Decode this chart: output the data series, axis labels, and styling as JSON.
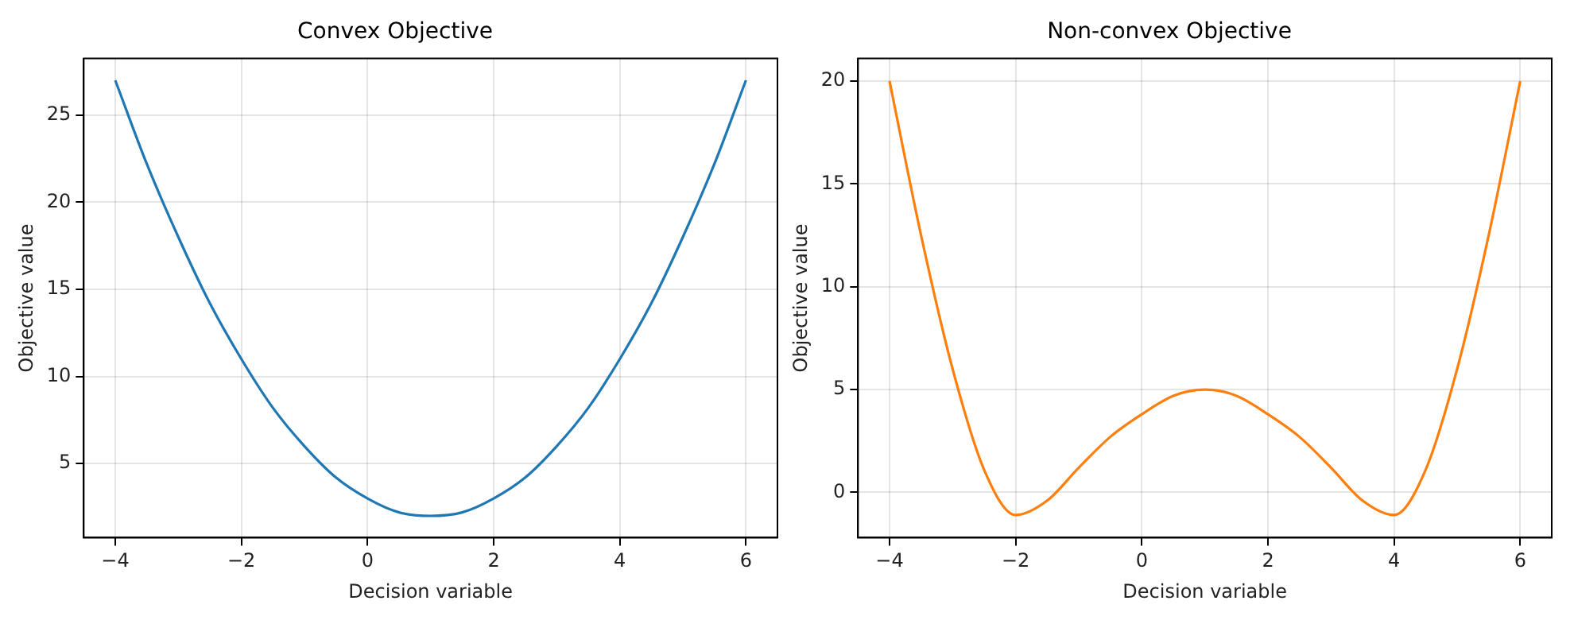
{
  "chart_data": [
    {
      "type": "line",
      "title": "Convex Objective",
      "xlabel": "Decision variable",
      "ylabel": "Objective value",
      "xlim": [
        -4.5,
        6.5
      ],
      "xticks": [
        -4,
        -2,
        0,
        2,
        4,
        6
      ],
      "ylim": [
        0.75,
        28.25
      ],
      "yticks": [
        5,
        10,
        15,
        20,
        25
      ],
      "grid": true,
      "legend": false,
      "marker": "none",
      "line_style": "solid",
      "x": [
        -4,
        -3.5,
        -3,
        -2.5,
        -2,
        -1.5,
        -1,
        -0.5,
        0,
        0.5,
        1,
        1.5,
        2,
        2.5,
        3,
        3.5,
        4,
        4.5,
        5,
        5.5,
        6
      ],
      "series": [
        {
          "color": "#1f77b4",
          "values": [
            27,
            22.2,
            18,
            14.2,
            11,
            8.2,
            6,
            4.2,
            3,
            2.2,
            2,
            2.2,
            3,
            4.2,
            6,
            8.2,
            11,
            14.2,
            18,
            22.2,
            27
          ]
        }
      ]
    },
    {
      "type": "line",
      "title": "Non-convex Objective",
      "xlabel": "Decision variable",
      "ylabel": "Objective value",
      "xlim": [
        -4.5,
        6.5
      ],
      "xticks": [
        -4,
        -2,
        0,
        2,
        4,
        6
      ],
      "ylim": [
        -2.2,
        21.1
      ],
      "yticks": [
        0,
        5,
        10,
        15,
        20
      ],
      "grid": true,
      "legend": false,
      "marker": "none",
      "line_style": "solid",
      "x": [
        -4,
        -3.5,
        -3,
        -2.5,
        -2,
        -1.5,
        -1,
        -0.5,
        0,
        0.5,
        1,
        1.5,
        2,
        2.5,
        3,
        3.5,
        4,
        4.5,
        5,
        5.5,
        6
      ],
      "series": [
        {
          "color": "#ff7f0e",
          "values": [
            20,
            12.5,
            6,
            1.1,
            -1.1,
            -0.4,
            1.2,
            2.7,
            3.8,
            4.7,
            5,
            4.7,
            3.8,
            2.7,
            1.2,
            -0.4,
            -1.1,
            1.1,
            6,
            12.5,
            20
          ]
        }
      ]
    }
  ]
}
